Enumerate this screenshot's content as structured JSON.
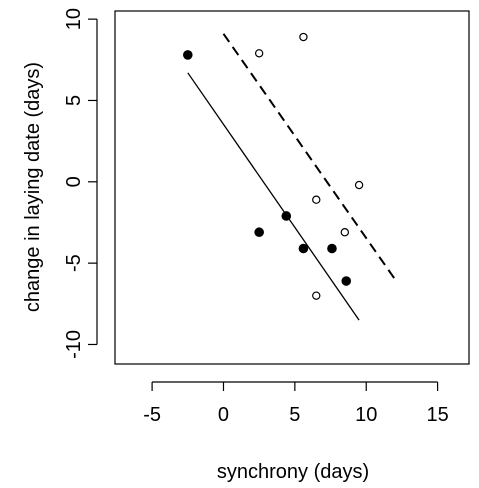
{
  "chart_data": {
    "type": "scatter",
    "xlabel": "synchrony (days)",
    "ylabel": "change in laying date (days)",
    "xlim": [
      -7.6,
      17.2
    ],
    "ylim": [
      -11.2,
      10.5
    ],
    "x_ticks": [
      "-5",
      "0",
      "5",
      "10",
      "15"
    ],
    "y_ticks": [
      "-10",
      "-5",
      "0",
      "5",
      "10"
    ],
    "grid": false,
    "series": [
      {
        "marker": "filled-circle",
        "color": "#000000",
        "points": [
          {
            "x": -2.5,
            "y": 7.8
          },
          {
            "x": 2.5,
            "y": -3.1
          },
          {
            "x": 4.4,
            "y": -2.1
          },
          {
            "x": 5.6,
            "y": -4.1
          },
          {
            "x": 7.6,
            "y": -4.1
          },
          {
            "x": 8.6,
            "y": -6.1
          }
        ]
      },
      {
        "marker": "open-circle",
        "color": "#000000",
        "points": [
          {
            "x": 2.5,
            "y": 7.9
          },
          {
            "x": 5.6,
            "y": 8.9
          },
          {
            "x": 6.5,
            "y": -1.1
          },
          {
            "x": 8.5,
            "y": -3.1
          },
          {
            "x": 9.5,
            "y": -0.2
          },
          {
            "x": 6.5,
            "y": -7.0
          }
        ]
      }
    ],
    "fit_lines": [
      {
        "style": "solid",
        "x": [
          -2.5,
          9.5
        ],
        "y": [
          6.7,
          -8.5
        ]
      },
      {
        "style": "dashed",
        "x": [
          0,
          12.1
        ],
        "y": [
          9.1,
          -6.1
        ]
      }
    ]
  }
}
